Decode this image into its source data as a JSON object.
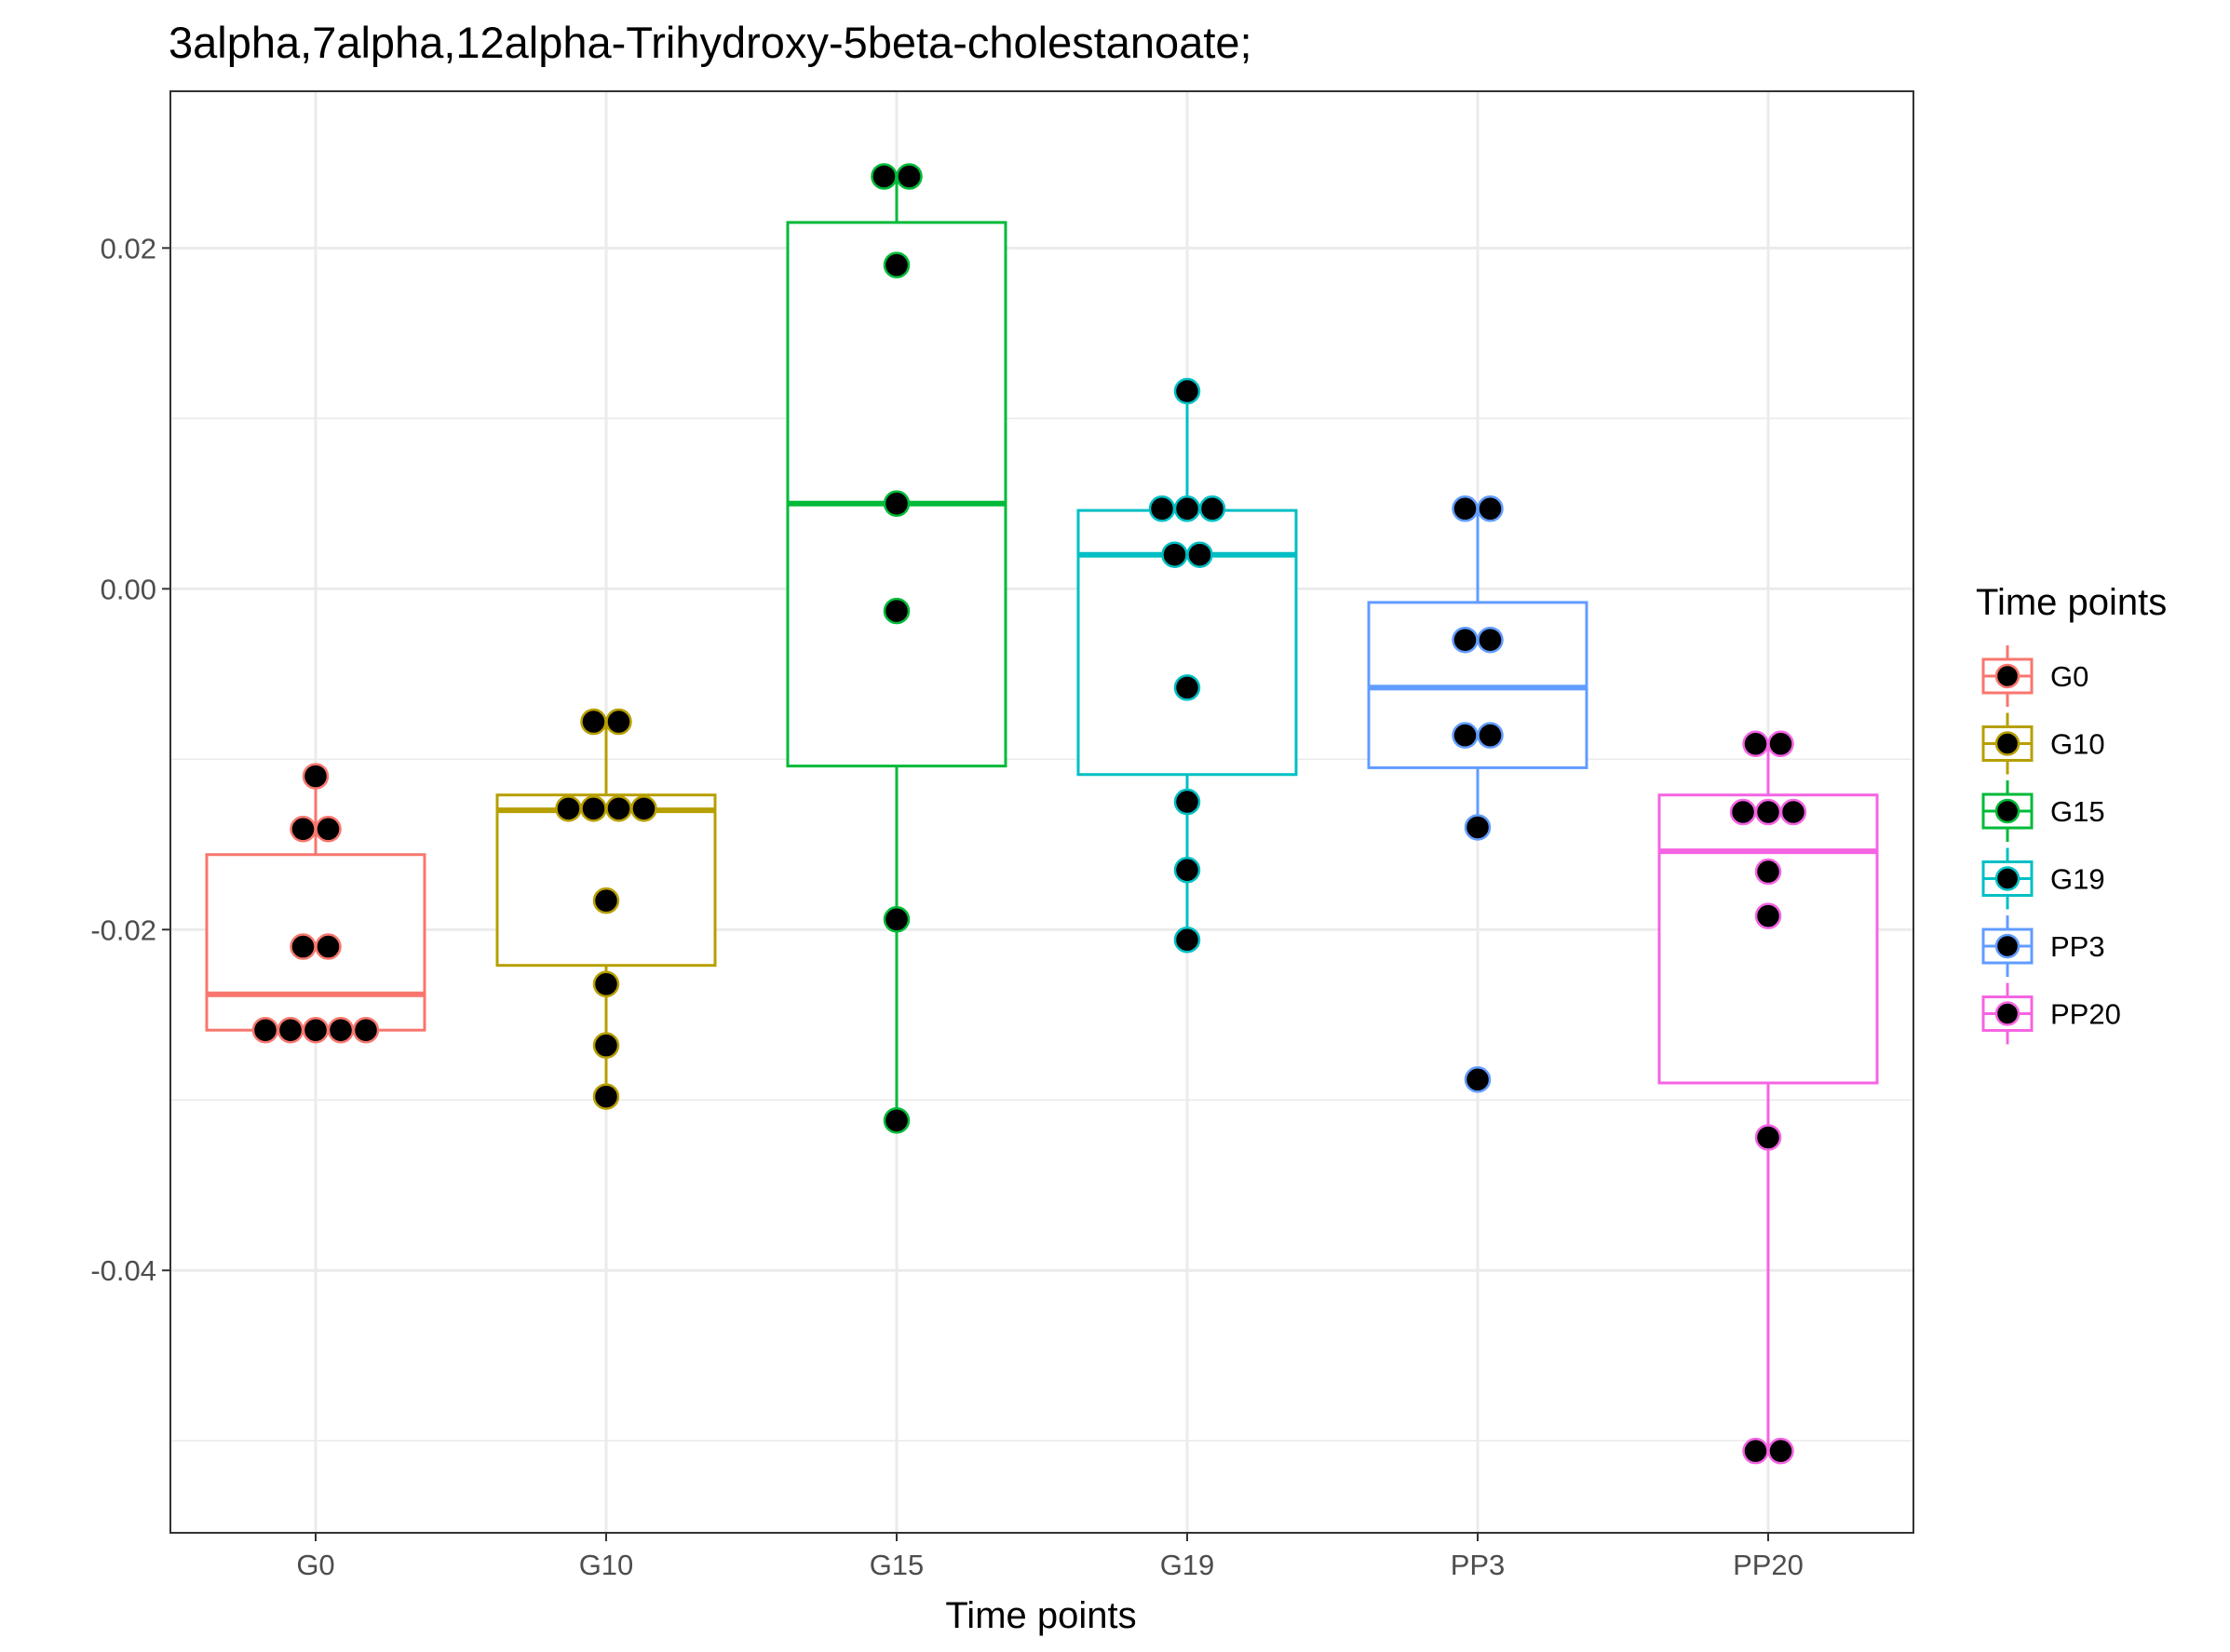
{
  "chart_data": {
    "type": "box",
    "title": "3alpha,7alpha,12alpha-Trihydroxy-5beta-cholestanoate;",
    "xlabel": "Time points",
    "ylabel": "",
    "ylim": [
      -0.0554,
      0.0292
    ],
    "yticks": [
      -0.04,
      -0.02,
      0.0,
      0.02
    ],
    "ytick_labels": [
      "-0.04",
      "-0.02",
      "0.00",
      "0.02"
    ],
    "categories": [
      "G0",
      "G10",
      "G15",
      "G19",
      "PP3",
      "PP20"
    ],
    "grid": true,
    "legend": {
      "title": "Time points",
      "position": "right"
    },
    "series": [
      {
        "name": "G0",
        "color": "#F8766D",
        "box": {
          "q1": -0.0259,
          "median": -0.0238,
          "q3": -0.0156,
          "whisker_low": -0.0259,
          "whisker_high": -0.011
        },
        "points": [
          -0.011,
          -0.0141,
          -0.0141,
          -0.021,
          -0.021,
          -0.0259,
          -0.0259,
          -0.0259,
          -0.0259,
          -0.0259
        ]
      },
      {
        "name": "G10",
        "color": "#B79F00",
        "box": {
          "q1": -0.0221,
          "median": -0.013,
          "q3": -0.0121,
          "whisker_low": -0.0298,
          "whisker_high": -0.0078
        },
        "points": [
          -0.0078,
          -0.0078,
          -0.0129,
          -0.0129,
          -0.0129,
          -0.0129,
          -0.0183,
          -0.0232,
          -0.0268,
          -0.0298
        ]
      },
      {
        "name": "G15",
        "color": "#00BA38",
        "box": {
          "q1": -0.0104,
          "median": 0.005,
          "q3": 0.0215,
          "whisker_low": -0.0312,
          "whisker_high": 0.0242
        },
        "points": [
          0.0242,
          0.0242,
          0.019,
          0.005,
          -0.0013,
          -0.0194,
          -0.0312
        ]
      },
      {
        "name": "G19",
        "color": "#00BFC4",
        "box": {
          "q1": -0.0109,
          "median": 0.002,
          "q3": 0.0046,
          "whisker_low": -0.0206,
          "whisker_high": 0.0116
        },
        "points": [
          0.0116,
          0.0047,
          0.0047,
          0.0047,
          0.002,
          0.002,
          -0.0058,
          -0.0125,
          -0.0165,
          -0.0206
        ]
      },
      {
        "name": "PP3",
        "color": "#619CFF",
        "box": {
          "q1": -0.0105,
          "median": -0.0058,
          "q3": -0.0008,
          "whisker_low": -0.014,
          "whisker_high": 0.0047
        },
        "points": [
          0.0047,
          0.0047,
          -0.003,
          -0.003,
          -0.0086,
          -0.0086,
          -0.014,
          -0.0288
        ]
      },
      {
        "name": "PP20",
        "color": "#F564E3",
        "box": {
          "q1": -0.029,
          "median": -0.0154,
          "q3": -0.0121,
          "whisker_low": -0.0506,
          "whisker_high": -0.0091
        },
        "points": [
          -0.0091,
          -0.0091,
          -0.0131,
          -0.0131,
          -0.0131,
          -0.0166,
          -0.0192,
          -0.0322,
          -0.0506,
          -0.0506
        ]
      }
    ]
  }
}
